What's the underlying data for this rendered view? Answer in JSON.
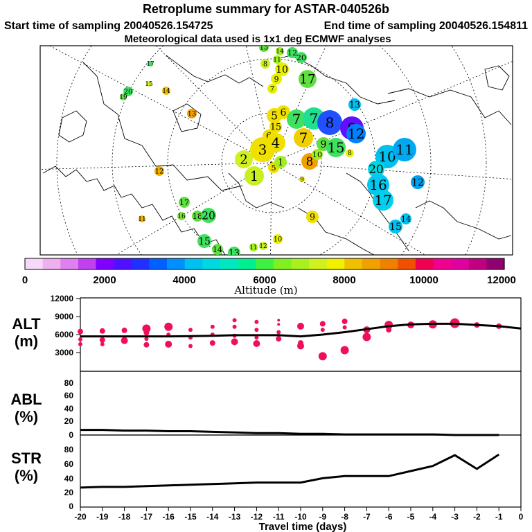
{
  "header": {
    "title": "Retroplume summary for ASTAR-040526b",
    "start_time": "Start time of sampling 20040526.154725",
    "end_time": "End time of sampling 20040526.154811",
    "met_data": "Meteorological data used is 1x1 deg ECMWF analyses"
  },
  "colorbar": {
    "label": "Altitude (m)",
    "ticks": [
      "0",
      "2000",
      "4000",
      "6000",
      "8000",
      "10000",
      "12000"
    ],
    "colors": [
      "#f8d8f8",
      "#f0b0f0",
      "#e080f0",
      "#c040f0",
      "#8000ff",
      "#5010ff",
      "#2030ff",
      "#0060ff",
      "#0090ff",
      "#00c0f0",
      "#00d8e0",
      "#00e8c0",
      "#00f090",
      "#40f040",
      "#80f020",
      "#a8f020",
      "#d0f020",
      "#f0f000",
      "#f0c000",
      "#f0a000",
      "#f08000",
      "#f05000",
      "#f00050",
      "#f00090",
      "#e000a0",
      "#c00080",
      "#900070"
    ]
  },
  "map_blobs": [
    {
      "label": "15",
      "color": "#60e040",
      "r": 7
    },
    {
      "label": "14",
      "color": "#a0f020",
      "r": 6
    },
    {
      "label": "11",
      "color": "#a0f020",
      "r": 6
    },
    {
      "label": "12",
      "color": "#40e060",
      "r": 8
    },
    {
      "label": "20",
      "color": "#40e060",
      "r": 8
    },
    {
      "label": "8",
      "color": "#c8f020",
      "r": 7
    },
    {
      "label": "10",
      "color": "#e8f000",
      "r": 10
    },
    {
      "label": "9",
      "color": "#e8f000",
      "r": 8
    },
    {
      "label": "7",
      "color": "#e0f000",
      "r": 7
    },
    {
      "label": "17",
      "color": "#60e040",
      "r": 13
    },
    {
      "label": "17",
      "color": "#40e060",
      "r": 4
    },
    {
      "label": "15",
      "color": "#d0f020",
      "r": 4
    },
    {
      "label": "14",
      "color": "#f0c000",
      "r": 6
    },
    {
      "label": "20",
      "color": "#40e060",
      "r": 7
    },
    {
      "label": "19",
      "color": "#60e040",
      "r": 5
    },
    {
      "label": "13",
      "color": "#f0a000",
      "r": 7
    },
    {
      "label": "13",
      "color": "#00c0f0",
      "r": 9
    },
    {
      "label": "5",
      "color": "#f0e000",
      "r": 11
    },
    {
      "label": "6",
      "color": "#f0e000",
      "r": 10
    },
    {
      "label": "7",
      "color": "#40e060",
      "r": 14
    },
    {
      "label": "7",
      "color": "#20e090",
      "r": 16
    },
    {
      "label": "8",
      "color": "#2050ff",
      "r": 18
    },
    {
      "label": "9",
      "color": "#6010ff",
      "r": 17
    },
    {
      "label": "12",
      "color": "#0080ff",
      "r": 14
    },
    {
      "label": "15",
      "color": "#f0e000",
      "r": 9
    },
    {
      "label": "6",
      "color": "#f0e000",
      "r": 9
    },
    {
      "label": "7",
      "color": "#f0d000",
      "r": 14
    },
    {
      "label": "9",
      "color": "#60e040",
      "r": 10
    },
    {
      "label": "15",
      "color": "#40e060",
      "r": 14
    },
    {
      "label": "8",
      "color": "#e8f000",
      "r": 6
    },
    {
      "label": "3",
      "color": "#f0e000",
      "r": 18
    },
    {
      "label": "4",
      "color": "#f0e000",
      "r": 14
    },
    {
      "label": "2",
      "color": "#d0f020",
      "r": 13
    },
    {
      "label": "1",
      "color": "#c8f020",
      "r": 14
    },
    {
      "label": "5",
      "color": "#f0e000",
      "r": 8
    },
    {
      "label": "8",
      "color": "#f0a000",
      "r": 12
    },
    {
      "label": "10",
      "color": "#a0f020",
      "r": 8
    },
    {
      "label": "1",
      "color": "#a0f020",
      "r": 9
    },
    {
      "label": "10",
      "color": "#00c0f0",
      "r": 17
    },
    {
      "label": "11",
      "color": "#00a8f0",
      "r": 17
    },
    {
      "label": "20",
      "color": "#00d8e0",
      "r": 12
    },
    {
      "label": "16",
      "color": "#00c8f0",
      "r": 16
    },
    {
      "label": "17",
      "color": "#00d0f0",
      "r": 15
    },
    {
      "label": "12",
      "color": "#00a0f0",
      "r": 10
    },
    {
      "label": "15",
      "color": "#00c0f0",
      "r": 10
    },
    {
      "label": "14",
      "color": "#00c0f0",
      "r": 8
    },
    {
      "label": "12",
      "color": "#f0b000",
      "r": 7
    },
    {
      "label": "9",
      "color": "#f0e000",
      "r": 4
    },
    {
      "label": "9",
      "color": "#f0e000",
      "r": 9
    },
    {
      "label": "17",
      "color": "#60e040",
      "r": 8
    },
    {
      "label": "16",
      "color": "#80e040",
      "r": 6
    },
    {
      "label": "18",
      "color": "#60e040",
      "r": 8
    },
    {
      "label": "20",
      "color": "#40e060",
      "r": 11
    },
    {
      "label": "11",
      "color": "#f0b000",
      "r": 5
    },
    {
      "label": "15",
      "color": "#40e060",
      "r": 10
    },
    {
      "label": "14",
      "color": "#60e040",
      "r": 8
    },
    {
      "label": "13",
      "color": "#40e060",
      "r": 9
    },
    {
      "label": "11",
      "color": "#a0f020",
      "r": 6
    },
    {
      "label": "12",
      "color": "#c8f020",
      "r": 6
    },
    {
      "label": "10",
      "color": "#e8f000",
      "r": 7
    }
  ],
  "chart_data": [
    {
      "type": "line",
      "title": "ALT (m)",
      "ylabel": "ALT (m)",
      "ylim": [
        0,
        12000
      ],
      "yticks": [
        "12000",
        "9000",
        "6000",
        "3000"
      ],
      "x": [
        -20,
        -19,
        -18,
        -17,
        -16,
        -15,
        -14,
        -13,
        -12,
        -11,
        -10,
        -9,
        -8,
        -7,
        -6,
        -5,
        -4,
        -3,
        -2,
        -1,
        0
      ],
      "series": [
        {
          "name": "median altitude",
          "values": [
            5700,
            5700,
            5700,
            5700,
            5700,
            5750,
            5800,
            5900,
            5900,
            5900,
            5700,
            6000,
            6400,
            6900,
            7400,
            7700,
            7800,
            7800,
            7600,
            7400,
            7000
          ]
        }
      ],
      "scatter": [
        {
          "x": -20,
          "y": 6500,
          "s": 4
        },
        {
          "x": -20,
          "y": 5200,
          "s": 3
        },
        {
          "x": -20,
          "y": 4400,
          "s": 3
        },
        {
          "x": -19,
          "y": 6600,
          "s": 4
        },
        {
          "x": -19,
          "y": 5100,
          "s": 4
        },
        {
          "x": -19,
          "y": 4400,
          "s": 3
        },
        {
          "x": -18,
          "y": 6700,
          "s": 4
        },
        {
          "x": -18,
          "y": 5000,
          "s": 5
        },
        {
          "x": -17,
          "y": 7000,
          "s": 6
        },
        {
          "x": -17,
          "y": 6300,
          "s": 4
        },
        {
          "x": -17,
          "y": 5300,
          "s": 3
        },
        {
          "x": -17,
          "y": 4300,
          "s": 4
        },
        {
          "x": -16,
          "y": 7300,
          "s": 6
        },
        {
          "x": -16,
          "y": 6000,
          "s": 3
        },
        {
          "x": -16,
          "y": 4400,
          "s": 5
        },
        {
          "x": -15,
          "y": 6800,
          "s": 3
        },
        {
          "x": -15,
          "y": 5500,
          "s": 3
        },
        {
          "x": -15,
          "y": 4100,
          "s": 3
        },
        {
          "x": -14,
          "y": 7300,
          "s": 3
        },
        {
          "x": -14,
          "y": 6000,
          "s": 3
        },
        {
          "x": -14,
          "y": 4600,
          "s": 4
        },
        {
          "x": -13,
          "y": 8400,
          "s": 3
        },
        {
          "x": -13,
          "y": 7300,
          "s": 3
        },
        {
          "x": -13,
          "y": 5800,
          "s": 3
        },
        {
          "x": -13,
          "y": 4800,
          "s": 5
        },
        {
          "x": -12,
          "y": 8100,
          "s": 3
        },
        {
          "x": -12,
          "y": 6800,
          "s": 3
        },
        {
          "x": -12,
          "y": 5500,
          "s": 3
        },
        {
          "x": -12,
          "y": 4500,
          "s": 5
        },
        {
          "x": -11,
          "y": 8400,
          "s": 2
        },
        {
          "x": -11,
          "y": 7700,
          "s": 2
        },
        {
          "x": -11,
          "y": 6400,
          "s": 3
        },
        {
          "x": -11,
          "y": 5300,
          "s": 4
        },
        {
          "x": -10,
          "y": 7400,
          "s": 5
        },
        {
          "x": -10,
          "y": 4600,
          "s": 4
        },
        {
          "x": -10,
          "y": 4100,
          "s": 5
        },
        {
          "x": -9,
          "y": 7800,
          "s": 4
        },
        {
          "x": -9,
          "y": 6800,
          "s": 3
        },
        {
          "x": -9,
          "y": 2400,
          "s": 6
        },
        {
          "x": -8,
          "y": 8200,
          "s": 4
        },
        {
          "x": -8,
          "y": 7200,
          "s": 3
        },
        {
          "x": -8,
          "y": 3400,
          "s": 6
        },
        {
          "x": -7,
          "y": 6800,
          "s": 5
        },
        {
          "x": -7,
          "y": 5600,
          "s": 6
        },
        {
          "x": -6,
          "y": 7600,
          "s": 6
        },
        {
          "x": -6,
          "y": 6800,
          "s": 4
        },
        {
          "x": -5,
          "y": 7600,
          "s": 5
        },
        {
          "x": -4,
          "y": 7700,
          "s": 6
        },
        {
          "x": -3,
          "y": 7900,
          "s": 7
        },
        {
          "x": -2,
          "y": 7600,
          "s": 4
        },
        {
          "x": -1,
          "y": 7400,
          "s": 4
        }
      ]
    },
    {
      "type": "line",
      "title": "ABL (%)",
      "ylabel": "ABL (%)",
      "ylim": [
        0,
        100
      ],
      "yticks": [
        "80",
        "60",
        "40",
        "20",
        "0"
      ],
      "x": [
        -20,
        -19,
        -18,
        -17,
        -16,
        -15,
        -14,
        -13,
        -12,
        -11,
        -10,
        -9,
        -8,
        -7,
        -6,
        -5,
        -4,
        -3,
        -2,
        -1
      ],
      "series": [
        {
          "name": "ABL fraction",
          "values": [
            8,
            8,
            7,
            7,
            6,
            6,
            5,
            4,
            3,
            3,
            2,
            2,
            1,
            1,
            1,
            1,
            1,
            0,
            0,
            0
          ]
        }
      ]
    },
    {
      "type": "line",
      "title": "STR (%)",
      "ylabel": "STR (%)",
      "ylim": [
        0,
        100
      ],
      "yticks": [
        "80",
        "60",
        "40",
        "20",
        "0"
      ],
      "x": [
        -20,
        -19,
        -18,
        -17,
        -16,
        -15,
        -14,
        -13,
        -12,
        -11,
        -10,
        -9,
        -8,
        -7,
        -6,
        -5,
        -4,
        -3,
        -2,
        -1
      ],
      "series": [
        {
          "name": "stratospheric fraction",
          "values": [
            27,
            28,
            28,
            29,
            30,
            31,
            32,
            33,
            34,
            34,
            34,
            40,
            43,
            43,
            43,
            50,
            57,
            72,
            53,
            73
          ]
        }
      ]
    }
  ],
  "x_axis": {
    "label": "Travel time (days)",
    "ticks": [
      "-20",
      "-19",
      "-18",
      "-17",
      "-16",
      "-15",
      "-14",
      "-13",
      "-12",
      "-11",
      "-10",
      "-9",
      "-8",
      "-7",
      "-6",
      "-5",
      "-4",
      "-3",
      "-2",
      "-1",
      "0"
    ]
  },
  "panel_labels": {
    "alt_top": "ALT",
    "alt_bottom": "(m)",
    "abl_top": "ABL",
    "abl_bottom": "(%)",
    "str_top": "STR",
    "str_bottom": "(%)"
  }
}
